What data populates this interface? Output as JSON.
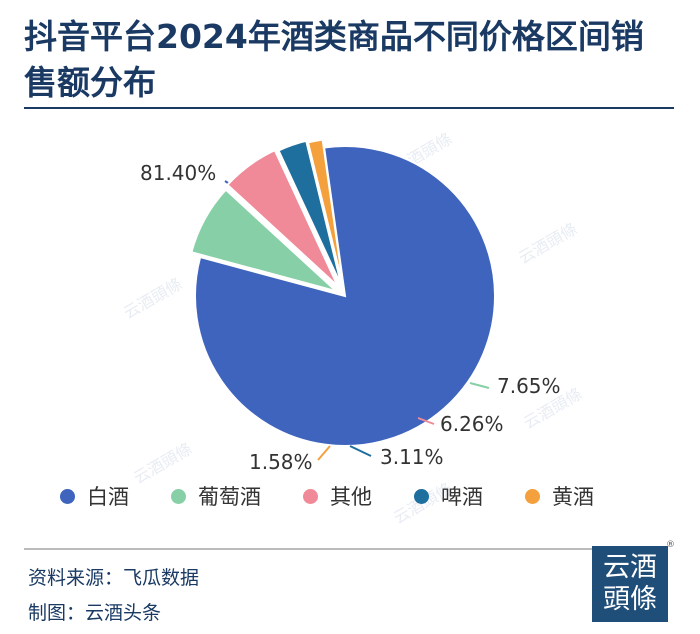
{
  "title": "抖音平台2024年酒类商品不同价格区间销售额分布",
  "watermark": "云酒頭條",
  "chart_data": {
    "type": "pie",
    "title": "抖音平台2024年酒类商品不同价格区间销售额分布",
    "slices": [
      {
        "label": "白酒",
        "value": 81.4,
        "display": "81.40%",
        "color": "#3f64bd"
      },
      {
        "label": "葡萄酒",
        "value": 7.65,
        "display": "7.65%",
        "color": "#87cfa6"
      },
      {
        "label": "其他",
        "value": 6.26,
        "display": "6.26%",
        "color": "#f08a98"
      },
      {
        "label": "啤酒",
        "value": 3.11,
        "display": "3.11%",
        "color": "#1f6f9e"
      },
      {
        "label": "黄酒",
        "value": 1.58,
        "display": "1.58%",
        "color": "#f4a03c"
      }
    ],
    "legend_position": "bottom"
  },
  "footer": {
    "source": "资料来源：飞瓜数据",
    "made_by": "制图：云酒头条"
  },
  "logo": {
    "line1": "云酒",
    "line2": "頭條",
    "reg": "®"
  }
}
